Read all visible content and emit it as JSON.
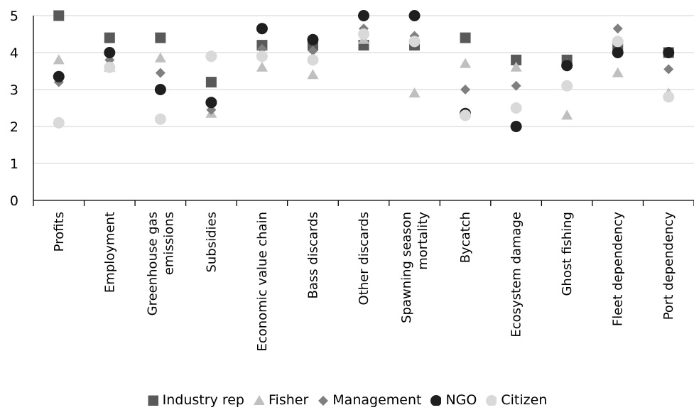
{
  "chart_data": {
    "type": "scatter",
    "categories": [
      [
        "Profits"
      ],
      [
        "Employment"
      ],
      [
        "Greenhouse gas",
        "emissions"
      ],
      [
        "Subsidies"
      ],
      [
        "Economic value chain"
      ],
      [
        "Bass discards"
      ],
      [
        "Other discards"
      ],
      [
        "Spawning season",
        "mortality"
      ],
      [
        "Bycatch"
      ],
      [
        "Ecosystem damage"
      ],
      [
        "Ghost fishing"
      ],
      [
        "Fleet dependency"
      ],
      [
        "Port dependency"
      ]
    ],
    "ylim": [
      0,
      5
    ],
    "yticks": [
      0,
      1,
      2,
      3,
      4,
      5
    ],
    "grid": true,
    "legend_position": "bottom",
    "series": [
      {
        "name": "Industry rep",
        "marker": "square",
        "color": "#595959",
        "values": [
          5.0,
          4.4,
          4.4,
          3.2,
          4.2,
          4.2,
          4.2,
          4.2,
          4.4,
          3.8,
          3.8,
          4.2,
          4.0
        ]
      },
      {
        "name": "Fisher",
        "marker": "triangle",
        "color": "#bfbfbf",
        "values": [
          3.8,
          3.6,
          3.85,
          2.35,
          3.6,
          3.4,
          4.35,
          2.9,
          3.7,
          3.6,
          2.3,
          3.45,
          2.9
        ]
      },
      {
        "name": "Management",
        "marker": "diamond",
        "color": "#7f7f7f",
        "values": [
          3.2,
          3.8,
          3.45,
          2.45,
          4.1,
          4.05,
          4.65,
          4.45,
          3.0,
          3.1,
          3.7,
          4.65,
          3.55
        ]
      },
      {
        "name": "NGO",
        "marker": "circle",
        "color": "#1f1f1f",
        "values": [
          3.35,
          4.0,
          3.0,
          2.65,
          4.65,
          4.35,
          5.0,
          5.0,
          2.35,
          2.0,
          3.65,
          4.0,
          4.0
        ]
      },
      {
        "name": "Citizen",
        "marker": "circle",
        "color": "#d9d9d9",
        "values": [
          2.1,
          3.6,
          2.2,
          3.9,
          3.9,
          3.8,
          4.5,
          4.3,
          2.3,
          2.5,
          3.1,
          4.3,
          2.8
        ]
      }
    ]
  }
}
